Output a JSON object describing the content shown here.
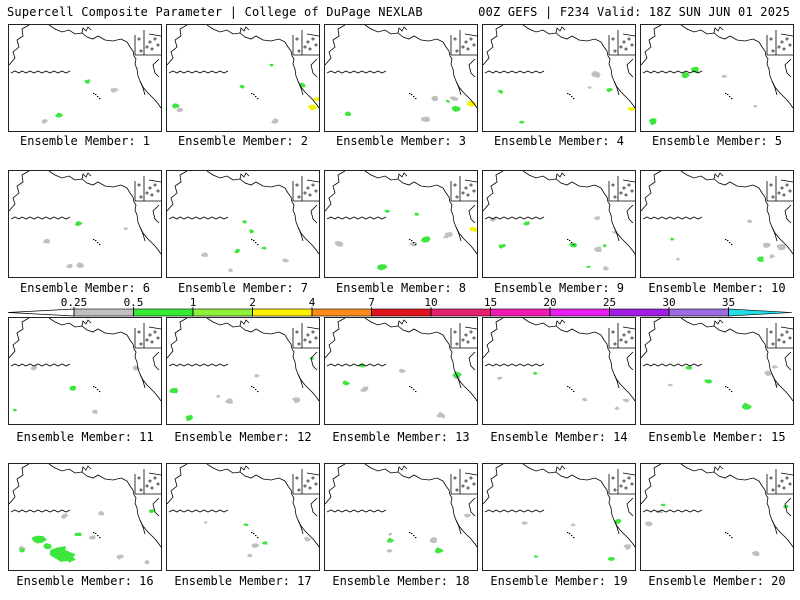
{
  "header": {
    "left": "Supercell Composite Parameter | College of DuPage NEXLAB",
    "right": "00Z GEFS | F234 Valid: 18Z SUN JUN 01 2025"
  },
  "member_label_prefix": "Ensemble Member: ",
  "members": [
    {
      "id": "1",
      "gray": 2,
      "green": 2,
      "yellow": 0
    },
    {
      "id": "2",
      "gray": 2,
      "green": 4,
      "yellow": 2
    },
    {
      "id": "3",
      "gray": 3,
      "green": 3,
      "yellow": 1
    },
    {
      "id": "4",
      "gray": 2,
      "green": 3,
      "yellow": 1
    },
    {
      "id": "5",
      "gray": 2,
      "green": 3,
      "yellow": 0
    },
    {
      "id": "6",
      "gray": 4,
      "green": 1,
      "yellow": 0
    },
    {
      "id": "7",
      "gray": 3,
      "green": 4,
      "yellow": 0
    },
    {
      "id": "8",
      "gray": 4,
      "green": 4,
      "yellow": 1
    },
    {
      "id": "9",
      "gray": 5,
      "green": 5,
      "yellow": 0
    },
    {
      "id": "10",
      "gray": 5,
      "green": 2,
      "yellow": 0
    },
    {
      "id": "11",
      "gray": 3,
      "green": 2,
      "yellow": 0
    },
    {
      "id": "12",
      "gray": 4,
      "green": 3,
      "yellow": 0
    },
    {
      "id": "13",
      "gray": 4,
      "green": 3,
      "yellow": 0
    },
    {
      "id": "14",
      "gray": 4,
      "green": 1,
      "yellow": 0
    },
    {
      "id": "15",
      "gray": 4,
      "green": 3,
      "yellow": 0
    },
    {
      "id": "16",
      "gray": 6,
      "green": 8,
      "yellow": 0
    },
    {
      "id": "17",
      "gray": 4,
      "green": 2,
      "yellow": 0
    },
    {
      "id": "18",
      "gray": 4,
      "green": 2,
      "yellow": 0
    },
    {
      "id": "19",
      "gray": 3,
      "green": 3,
      "yellow": 0
    },
    {
      "id": "20",
      "gray": 3,
      "green": 2,
      "yellow": 0
    }
  ],
  "colorbar": {
    "labels": [
      "0.25",
      "0.5",
      "1",
      "2",
      "4",
      "7",
      "10",
      "15",
      "20",
      "25",
      "30",
      "35"
    ],
    "colors": [
      "#c0c0c0",
      "#36ea36",
      "#8ff23a",
      "#fff200",
      "#ff8c1a",
      "#e0141e",
      "#e61f6e",
      "#f21ab4",
      "#e61ef0",
      "#a01ee6",
      "#9d6adf",
      "#22dde6"
    ]
  },
  "colors": {
    "coast": "#000000",
    "field_low": "#c0c0c0",
    "field_green": "#3ce63c",
    "field_yellow": "#f5f000"
  }
}
